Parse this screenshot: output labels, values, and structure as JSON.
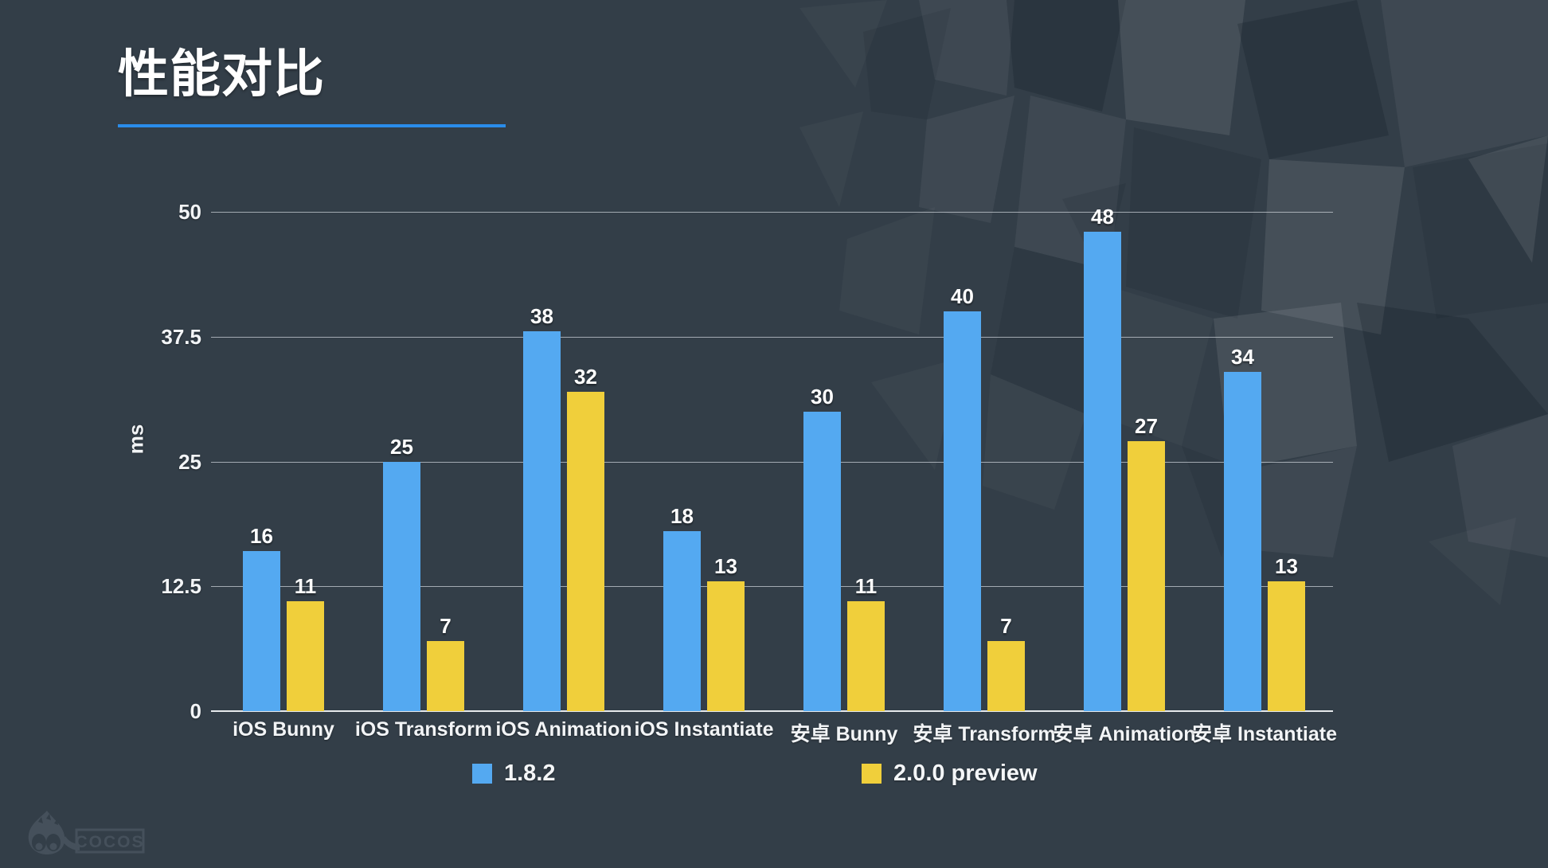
{
  "slide": {
    "title": "性能对比",
    "accent_color": "#2A8CEA",
    "background_color": "#333E48"
  },
  "logo": {
    "text": "COCOS"
  },
  "chart_data": {
    "type": "bar",
    "title": "性能对比",
    "xlabel": "",
    "ylabel": "ms",
    "ylim": [
      0,
      50
    ],
    "yticks": [
      0,
      12.5,
      25,
      37.5,
      50
    ],
    "grid": true,
    "legend_position": "bottom",
    "categories": [
      "iOS Bunny",
      "iOS Transform",
      "iOS Animation",
      "iOS Instantiate",
      "安卓 Bunny",
      "安卓 Transform",
      "安卓 Animation",
      "安卓 Instantiate"
    ],
    "series": [
      {
        "name": "1.8.2",
        "color": "#54A9F1",
        "values": [
          16,
          25,
          38,
          18,
          30,
          40,
          48,
          34
        ]
      },
      {
        "name": "2.0.0 preview",
        "color": "#F0CF3B",
        "values": [
          11,
          7,
          32,
          13,
          11,
          7,
          27,
          13
        ]
      }
    ]
  }
}
